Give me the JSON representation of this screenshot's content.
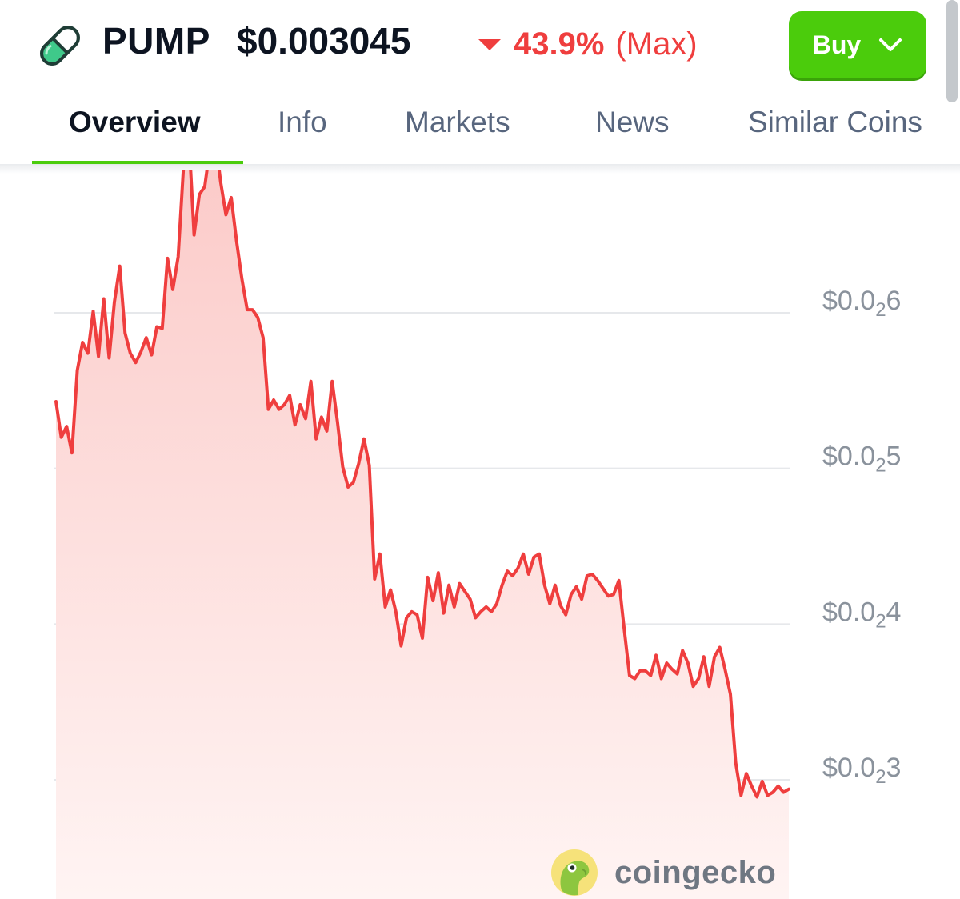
{
  "header": {
    "symbol": "PUMP",
    "price": "$0.003045",
    "change_percent": "43.9%",
    "change_direction": "down",
    "change_period": "(Max)",
    "buy_label": "Buy",
    "icons": {
      "coin": "pill-icon",
      "change": "caret-down-icon",
      "buy": "chevron-down-icon"
    }
  },
  "tabs": [
    {
      "label": "Overview",
      "active": true
    },
    {
      "label": "Info",
      "active": false
    },
    {
      "label": "Markets",
      "active": false
    },
    {
      "label": "News",
      "active": false
    },
    {
      "label": "Similar Coins",
      "active": false
    }
  ],
  "colors": {
    "accent": "#4bcc0c",
    "negative": "#ef3e3e",
    "text": "#0d1421",
    "muted": "#58667e"
  },
  "chart_data": {
    "type": "area",
    "title": "",
    "xlabel": "",
    "ylabel": "",
    "ylim": [
      0.0022,
      0.00275
    ],
    "grid": true,
    "y_ticks": [
      {
        "value": 0.0026,
        "prefix": "$0.0",
        "sub": "2",
        "digit": "6"
      },
      {
        "value": 0.0025,
        "prefix": "$0.0",
        "sub": "2",
        "digit": "5"
      },
      {
        "value": 0.0024,
        "prefix": "$0.0",
        "sub": "2",
        "digit": "4"
      },
      {
        "value": 0.0023,
        "prefix": "$0.0",
        "sub": "2",
        "digit": "3"
      }
    ],
    "series": [
      {
        "values": [
          0.002543,
          0.00252,
          0.002527,
          0.00251,
          0.002563,
          0.002581,
          0.002574,
          0.002601,
          0.002572,
          0.002609,
          0.002571,
          0.002607,
          0.00263,
          0.002587,
          0.002574,
          0.002568,
          0.002575,
          0.002584,
          0.002573,
          0.002591,
          0.00259,
          0.002635,
          0.002615,
          0.002636,
          0.002693,
          0.002715,
          0.00265,
          0.002676,
          0.002681,
          0.002706,
          0.002712,
          0.002684,
          0.002663,
          0.002674,
          0.002646,
          0.002622,
          0.002602,
          0.002602,
          0.002597,
          0.002584,
          0.002538,
          0.002544,
          0.002538,
          0.002541,
          0.002547,
          0.002528,
          0.002541,
          0.002532,
          0.002556,
          0.002519,
          0.002533,
          0.002524,
          0.002556,
          0.00253,
          0.002501,
          0.002488,
          0.002491,
          0.002503,
          0.002519,
          0.002502,
          0.002429,
          0.002445,
          0.002411,
          0.002422,
          0.002408,
          0.002386,
          0.002404,
          0.002408,
          0.002406,
          0.002391,
          0.00243,
          0.002415,
          0.002433,
          0.002407,
          0.002425,
          0.002411,
          0.002426,
          0.002421,
          0.002416,
          0.002404,
          0.002408,
          0.002411,
          0.002408,
          0.002413,
          0.002425,
          0.002434,
          0.002431,
          0.002436,
          0.002445,
          0.002432,
          0.002443,
          0.002445,
          0.002425,
          0.002413,
          0.002425,
          0.002412,
          0.002406,
          0.002419,
          0.002424,
          0.002416,
          0.002431,
          0.002432,
          0.002428,
          0.002423,
          0.002418,
          0.002419,
          0.002428,
          0.002397,
          0.002367,
          0.002365,
          0.00237,
          0.00237,
          0.002367,
          0.00238,
          0.002365,
          0.002375,
          0.002371,
          0.002368,
          0.002383,
          0.002375,
          0.00236,
          0.002365,
          0.002379,
          0.00236,
          0.002379,
          0.002385,
          0.002371,
          0.002355,
          0.002311,
          0.00229,
          0.002304,
          0.002296,
          0.002289,
          0.002299,
          0.00229,
          0.002292,
          0.002296,
          0.002292,
          0.002294
        ]
      }
    ]
  },
  "watermark": {
    "text": "coingecko",
    "icon": "gecko-logo-icon"
  }
}
